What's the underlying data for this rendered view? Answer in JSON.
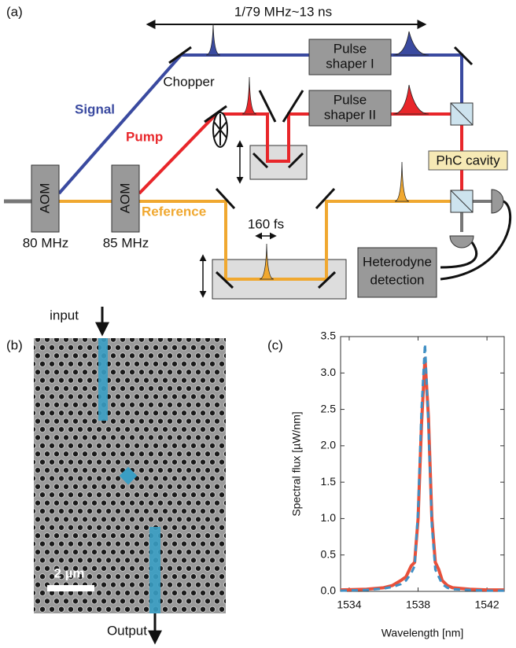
{
  "panel_a": {
    "label": "(a)",
    "period": "1/79 MHz~13 ns",
    "pulse_shaper_1": [
      "Pulse",
      "shaper I"
    ],
    "pulse_shaper_2": [
      "Pulse",
      "shaper II"
    ],
    "chopper": "Chopper",
    "signal": "Signal",
    "pump": "Pump",
    "reference": "Reference",
    "aom_1": "AOM",
    "aom_2": "AOM",
    "freq_1": "80 MHz",
    "freq_2": "85 MHz",
    "cavity": "PhC cavity",
    "pulse_width": "160 fs",
    "detection": [
      "Heterodyne",
      "detection"
    ]
  },
  "panel_b": {
    "label": "(b)",
    "input": "input",
    "output": "Output",
    "scale": "2 µm"
  },
  "panel_c": {
    "label": "(c)"
  },
  "chart_data": {
    "type": "line",
    "xlabel": "Wavelength [nm]",
    "ylabel": "Spectral flux [µW/nm]",
    "x": [
      1533.5,
      1535,
      1536,
      1536.5,
      1537,
      1537.3,
      1537.6,
      1537.8,
      1538.0,
      1538.2,
      1538.4,
      1538.6,
      1538.8,
      1539.0,
      1539.2,
      1539.4,
      1539.7,
      1540,
      1541,
      1542,
      1543
    ],
    "series": [
      {
        "color": "#e8503a",
        "dash": false,
        "values": [
          0.02,
          0.03,
          0.05,
          0.08,
          0.15,
          0.2,
          0.35,
          0.4,
          1.0,
          2.3,
          3.2,
          2.4,
          1.0,
          0.4,
          0.3,
          0.15,
          0.08,
          0.05,
          0.03,
          0.02,
          0.02
        ]
      },
      {
        "color": "#3f8fc4",
        "dash": true,
        "values": [
          0.01,
          0.02,
          0.04,
          0.06,
          0.1,
          0.15,
          0.25,
          0.35,
          1.1,
          2.5,
          3.4,
          2.3,
          0.9,
          0.3,
          0.2,
          0.1,
          0.05,
          0.03,
          0.02,
          0.01,
          0.01
        ]
      }
    ],
    "xlim": [
      1533.5,
      1543
    ],
    "xticks": [
      1534,
      1538,
      1542
    ],
    "ylim": [
      0,
      3.5
    ],
    "yticks": [
      {
        "value": 0,
        "label": "0.0"
      },
      {
        "value": 0.5,
        "label": "0.5"
      },
      {
        "value": 1,
        "label": "1.0"
      },
      {
        "value": 1.5,
        "label": "1.5"
      },
      {
        "value": 2,
        "label": "2.0"
      },
      {
        "value": 2.5,
        "label": "2.5"
      },
      {
        "value": 3,
        "label": "3.0"
      },
      {
        "value": 3.5,
        "label": "3.5"
      }
    ]
  }
}
